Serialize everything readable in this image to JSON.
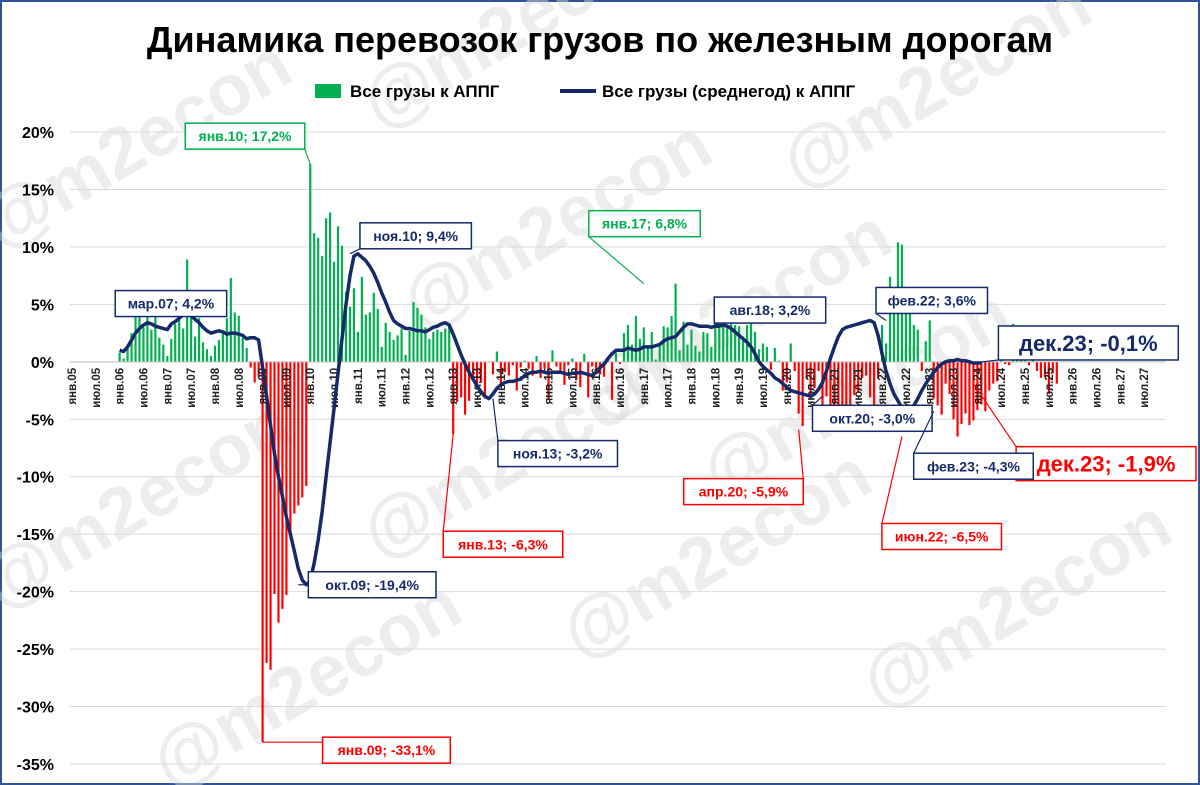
{
  "chart_data": {
    "type": "bar",
    "title": "Динамика перевозок грузов по железным дорогам",
    "watermark": "@m2econ",
    "ylim": [
      -35,
      20
    ],
    "yticks": [
      "-35%",
      "-30%",
      "-25%",
      "-20%",
      "-15%",
      "-10%",
      "-5%",
      "0%",
      "5%",
      "10%",
      "15%",
      "20%"
    ],
    "ytick_values": [
      -35,
      -30,
      -25,
      -20,
      -15,
      -10,
      -5,
      0,
      5,
      10,
      15,
      20
    ],
    "grid": "horizontal",
    "legend_position": "top",
    "colors": {
      "positive": "#00b050",
      "negative": "#ff0000",
      "line": "#142a69",
      "axis_text": "#000000"
    },
    "x_start": "янв.05",
    "x_end": "июл.27",
    "x_ticks": [
      "янв.05",
      "июл.05",
      "янв.06",
      "июл.06",
      "янв.07",
      "июл.07",
      "янв.08",
      "июл.08",
      "янв.09",
      "июл.09",
      "янв.10",
      "июл.10",
      "янв.11",
      "июл.11",
      "янв.12",
      "июл.12",
      "янв.13",
      "июл.13",
      "янв.14",
      "июл.14",
      "янв.15",
      "июл.15",
      "янв.16",
      "июл.16",
      "янв.17",
      "июл.17",
      "янв.18",
      "июл.18",
      "янв.19",
      "июл.19",
      "янв.20",
      "июл.20",
      "янв.21",
      "июл.21",
      "янв.22",
      "июл.22",
      "янв.23",
      "июл.23",
      "янв.24",
      "июл.24",
      "янв.25",
      "июл.25",
      "янв.26",
      "июл.26",
      "янв.27",
      "июл.27"
    ],
    "series": [
      {
        "name": "Все грузы к АППГ",
        "type": "bar",
        "values": [
          0.8,
          0.3,
          1.2,
          2.5,
          4.1,
          5.3,
          3.0,
          4.2,
          2.8,
          5.0,
          2.1,
          1.5,
          0.5,
          2.0,
          3.3,
          4.7,
          2.9,
          8.9,
          6.2,
          2.2,
          3.8,
          1.7,
          1.1,
          0.5,
          1.4,
          1.9,
          2.6,
          3.8,
          7.3,
          4.3,
          4.0,
          2.1,
          1.2,
          -0.5,
          -1.8,
          -1.3,
          -33.1,
          -26.2,
          -26.8,
          -20.2,
          -22.7,
          -21.5,
          -20.3,
          -14.9,
          -13.2,
          -12.5,
          -11.8,
          -10.8,
          17.2,
          11.2,
          10.8,
          9.2,
          12.5,
          13.0,
          8.7,
          11.8,
          10.1,
          6.1,
          4.8,
          6.4,
          2.6,
          7.4,
          4.1,
          4.3,
          6.0,
          4.6,
          1.3,
          3.4,
          2.6,
          1.9,
          2.3,
          2.9,
          0.6,
          2.7,
          5.2,
          4.7,
          4.1,
          3.0,
          2.0,
          2.6,
          2.8,
          2.6,
          2.9,
          3.1,
          -6.3,
          -3.5,
          -3.1,
          -4.6,
          -3.4,
          -1.3,
          -2.3,
          -1.8,
          -3.2,
          0.0,
          -1.1,
          0.9,
          -2.0,
          -0.9,
          -1.2,
          -0.3,
          -2.5,
          -0.5,
          0.1,
          -0.6,
          -1.2,
          0.5,
          -1.4,
          -0.6,
          -3.3,
          1.0,
          -0.4,
          -1.0,
          -2.0,
          -0.3,
          0.3,
          -1.6,
          -2.2,
          0.7,
          -3.1,
          -0.4,
          -0.9,
          -1.1,
          -1.3,
          0.4,
          -3.3,
          0.8,
          -0.2,
          2.5,
          3.2,
          1.5,
          4.0,
          2.0,
          3.0,
          1.4,
          2.6,
          0.2,
          1.6,
          3.1,
          3.0,
          4.0,
          6.8,
          1.0,
          3.5,
          1.5,
          2.8,
          1.4,
          0.9,
          2.6,
          2.5,
          1.3,
          3.4,
          4.4,
          3.6,
          3.0,
          4.1,
          3.2,
          3.1,
          2.2,
          3.2,
          3.5,
          2.6,
          1.1,
          1.6,
          1.3,
          -0.7,
          1.2,
          0.1,
          -2.5,
          -1.8,
          1.6,
          -0.8,
          -4.5,
          -5.6,
          -1.5,
          -3.0,
          -2.3,
          -0.8,
          -4.9,
          -3.0,
          -5.5,
          -5.9,
          -4.3,
          -4.2,
          -4.6,
          -3.8,
          -2.9,
          -2.6,
          -1.4,
          -1.2,
          -3.1,
          -5.1,
          -1.4,
          3.2,
          1.6,
          7.4,
          5.5,
          10.4,
          10.2,
          4.4,
          4.5,
          3.2,
          2.8,
          -0.8,
          1.8,
          3.6,
          -3.2,
          -3.8,
          -4.6,
          -1.9,
          -2.8,
          -5.0,
          -6.5,
          -5.4,
          -4.5,
          -5.5,
          -5.1,
          -4.2,
          -3.7,
          -4.3,
          -2.5,
          -1.9,
          -1.7,
          0.5,
          -0.2,
          -0.3,
          3.3,
          2.5,
          1.8,
          1.1,
          -0.3,
          0.2,
          -0.8,
          -1.4,
          -1.3,
          -2.8,
          -1.0,
          -1.9
        ],
        "color_rule": "green if >= 0, red if < 0"
      },
      {
        "name": "Все грузы (среднегод) к АППГ",
        "type": "line",
        "values": [
          1.0,
          0.9,
          1.3,
          1.9,
          2.5,
          2.9,
          3.2,
          3.4,
          3.3,
          3.1,
          3.0,
          2.9,
          2.8,
          3.3,
          3.5,
          3.8,
          4.1,
          4.2,
          4.0,
          3.7,
          3.4,
          3.0,
          2.7,
          2.5,
          2.6,
          2.7,
          2.6,
          2.4,
          2.5,
          2.5,
          2.4,
          2.3,
          2.0,
          2.1,
          2.1,
          1.9,
          -0.5,
          -3.0,
          -5.5,
          -8.0,
          -10.0,
          -11.7,
          -13.5,
          -15.0,
          -16.5,
          -18.0,
          -19.0,
          -19.4,
          -19.1,
          -17.5,
          -15.5,
          -13.0,
          -10.0,
          -7.0,
          -4.0,
          -1.0,
          2.0,
          5.0,
          7.5,
          9.2,
          9.4,
          9.1,
          8.8,
          8.3,
          7.7,
          6.9,
          6.0,
          5.2,
          4.3,
          3.6,
          3.3,
          3.1,
          2.9,
          2.9,
          2.8,
          2.7,
          2.7,
          2.6,
          2.8,
          3.0,
          3.1,
          3.3,
          3.4,
          3.2,
          2.4,
          1.5,
          0.6,
          -0.2,
          -0.9,
          -1.5,
          -2.1,
          -2.6,
          -3.0,
          -3.2,
          -2.8,
          -2.3,
          -2.0,
          -1.8,
          -1.7,
          -1.7,
          -1.6,
          -1.5,
          -1.2,
          -1.0,
          -0.9,
          -0.9,
          -0.8,
          -0.9,
          -1.0,
          -0.9,
          -0.9,
          -0.9,
          -1.0,
          -1.1,
          -1.0,
          -1.0,
          -0.9,
          -1.0,
          -1.1,
          -1.2,
          -0.9,
          -0.5,
          -0.2,
          0.3,
          0.7,
          1.0,
          1.0,
          1.0,
          1.2,
          1.1,
          1.0,
          1.1,
          1.3,
          1.3,
          1.3,
          1.4,
          1.5,
          1.8,
          2.0,
          2.1,
          2.2,
          2.6,
          3.0,
          3.3,
          3.3,
          3.2,
          3.1,
          3.1,
          3.1,
          3.0,
          3.1,
          3.1,
          3.2,
          3.1,
          2.9,
          2.6,
          2.3,
          2.0,
          1.7,
          1.3,
          0.7,
          0.0,
          -0.4,
          -0.7,
          -1.0,
          -1.4,
          -1.6,
          -1.9,
          -2.2,
          -2.5,
          -2.6,
          -2.7,
          -2.8,
          -2.9,
          -3.0,
          -2.8,
          -2.4,
          -1.8,
          -0.8,
          0.3,
          1.3,
          2.2,
          2.8,
          3.0,
          3.1,
          3.2,
          3.3,
          3.4,
          3.5,
          3.6,
          3.4,
          2.3,
          0.7,
          -0.8,
          -1.9,
          -2.8,
          -3.4,
          -4.0,
          -4.3,
          -4.2,
          -3.8,
          -3.2,
          -2.5,
          -1.9,
          -1.4,
          -0.9,
          -0.5,
          -0.2,
          0.0,
          0.1,
          0.1,
          0.2,
          0.1,
          0.1,
          0.0,
          -0.1,
          -0.1,
          -0.1
        ]
      }
    ],
    "legend": [
      "Все грузы к АППГ",
      "Все грузы (среднегод) к АППГ"
    ],
    "annotations": [
      {
        "text": "янв.10; 17,2%",
        "series": 0,
        "date": "янв.10",
        "value": 17.2,
        "color": "#00b050",
        "size": 14
      },
      {
        "text": "янв.17; 6,8%",
        "series": 0,
        "date": "янв.17",
        "value": 6.8,
        "color": "#00b050",
        "size": 14
      },
      {
        "text": "янв.09; -33,1%",
        "series": 0,
        "date": "янв.09",
        "value": -33.1,
        "color": "#ff0000",
        "size": 14
      },
      {
        "text": "янв.13; -6,3%",
        "series": 0,
        "date": "янв.13",
        "value": -6.3,
        "color": "#ff0000",
        "size": 14
      },
      {
        "text": "апр.20; -5,9%",
        "series": 0,
        "date": "апр.20",
        "value": -5.9,
        "color": "#ff0000",
        "size": 14
      },
      {
        "text": "июн.22; -6,5%",
        "series": 0,
        "date": "июн.22",
        "value": -6.5,
        "color": "#ff0000",
        "size": 14
      },
      {
        "text": "дек.23; -1,9%",
        "series": 0,
        "date": "дек.23",
        "value": -1.9,
        "color": "#ff0000",
        "size": 22
      },
      {
        "text": "мар.07; 4,2%",
        "series": 1,
        "date": "мар.07",
        "value": 4.2,
        "color": "#142a69",
        "size": 14
      },
      {
        "text": "ноя.10; 9,4%",
        "series": 1,
        "date": "ноя.10",
        "value": 9.4,
        "color": "#142a69",
        "size": 14
      },
      {
        "text": "окт.09; -19,4%",
        "series": 1,
        "date": "окт.09",
        "value": -19.4,
        "color": "#142a69",
        "size": 14
      },
      {
        "text": "ноя.13; -3,2%",
        "series": 1,
        "date": "ноя.13",
        "value": -3.2,
        "color": "#142a69",
        "size": 14
      },
      {
        "text": "авг.18; 3,2%",
        "series": 1,
        "date": "авг.18",
        "value": 3.2,
        "color": "#142a69",
        "size": 14
      },
      {
        "text": "окт.20; -3,0%",
        "series": 1,
        "date": "окт.20",
        "value": -3.0,
        "color": "#142a69",
        "size": 14
      },
      {
        "text": "фев.22; 3,6%",
        "series": 1,
        "date": "фев.22",
        "value": 3.6,
        "color": "#142a69",
        "size": 14
      },
      {
        "text": "фев.23; -4,3%",
        "series": 1,
        "date": "фев.23",
        "value": -4.3,
        "color": "#142a69",
        "size": 14
      },
      {
        "text": "дек.23; -0,1%",
        "series": 1,
        "date": "дек.23",
        "value": -0.1,
        "color": "#142a69",
        "size": 22
      }
    ]
  }
}
